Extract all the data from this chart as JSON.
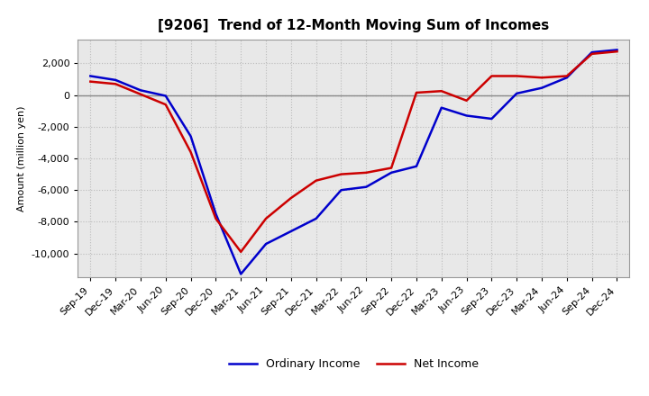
{
  "title": "[9206]  Trend of 12-Month Moving Sum of Incomes",
  "ylabel": "Amount (million yen)",
  "x_labels": [
    "Sep-19",
    "Dec-19",
    "Mar-20",
    "Jun-20",
    "Sep-20",
    "Dec-20",
    "Mar-21",
    "Jun-21",
    "Sep-21",
    "Dec-21",
    "Mar-22",
    "Jun-22",
    "Sep-22",
    "Dec-22",
    "Mar-23",
    "Jun-23",
    "Sep-23",
    "Dec-23",
    "Mar-24",
    "Jun-24",
    "Sep-24",
    "Dec-24"
  ],
  "ordinary_income": [
    1200,
    950,
    300,
    -50,
    -2600,
    -7500,
    -11300,
    -9400,
    -8600,
    -7800,
    -6000,
    -5800,
    -4900,
    -4500,
    -800,
    -1300,
    -1500,
    100,
    450,
    1100,
    2700,
    2850
  ],
  "net_income": [
    850,
    700,
    50,
    -600,
    -3600,
    -7800,
    -9900,
    -7800,
    -6500,
    -5400,
    -5000,
    -4900,
    -4600,
    150,
    250,
    -350,
    1200,
    1200,
    1100,
    1200,
    2600,
    2750
  ],
  "ordinary_income_color": "#0000cc",
  "net_income_color": "#cc0000",
  "ylim": [
    -11500,
    3500
  ],
  "yticks": [
    -10000,
    -8000,
    -6000,
    -4000,
    -2000,
    0,
    2000
  ],
  "plot_bg_color": "#e8e8e8",
  "figure_bg_color": "#ffffff",
  "grid_color": "#bbbbbb",
  "zero_line_color": "#888888",
  "line_width": 1.8,
  "title_fontsize": 11,
  "label_fontsize": 8,
  "tick_fontsize": 8,
  "legend_fontsize": 9
}
